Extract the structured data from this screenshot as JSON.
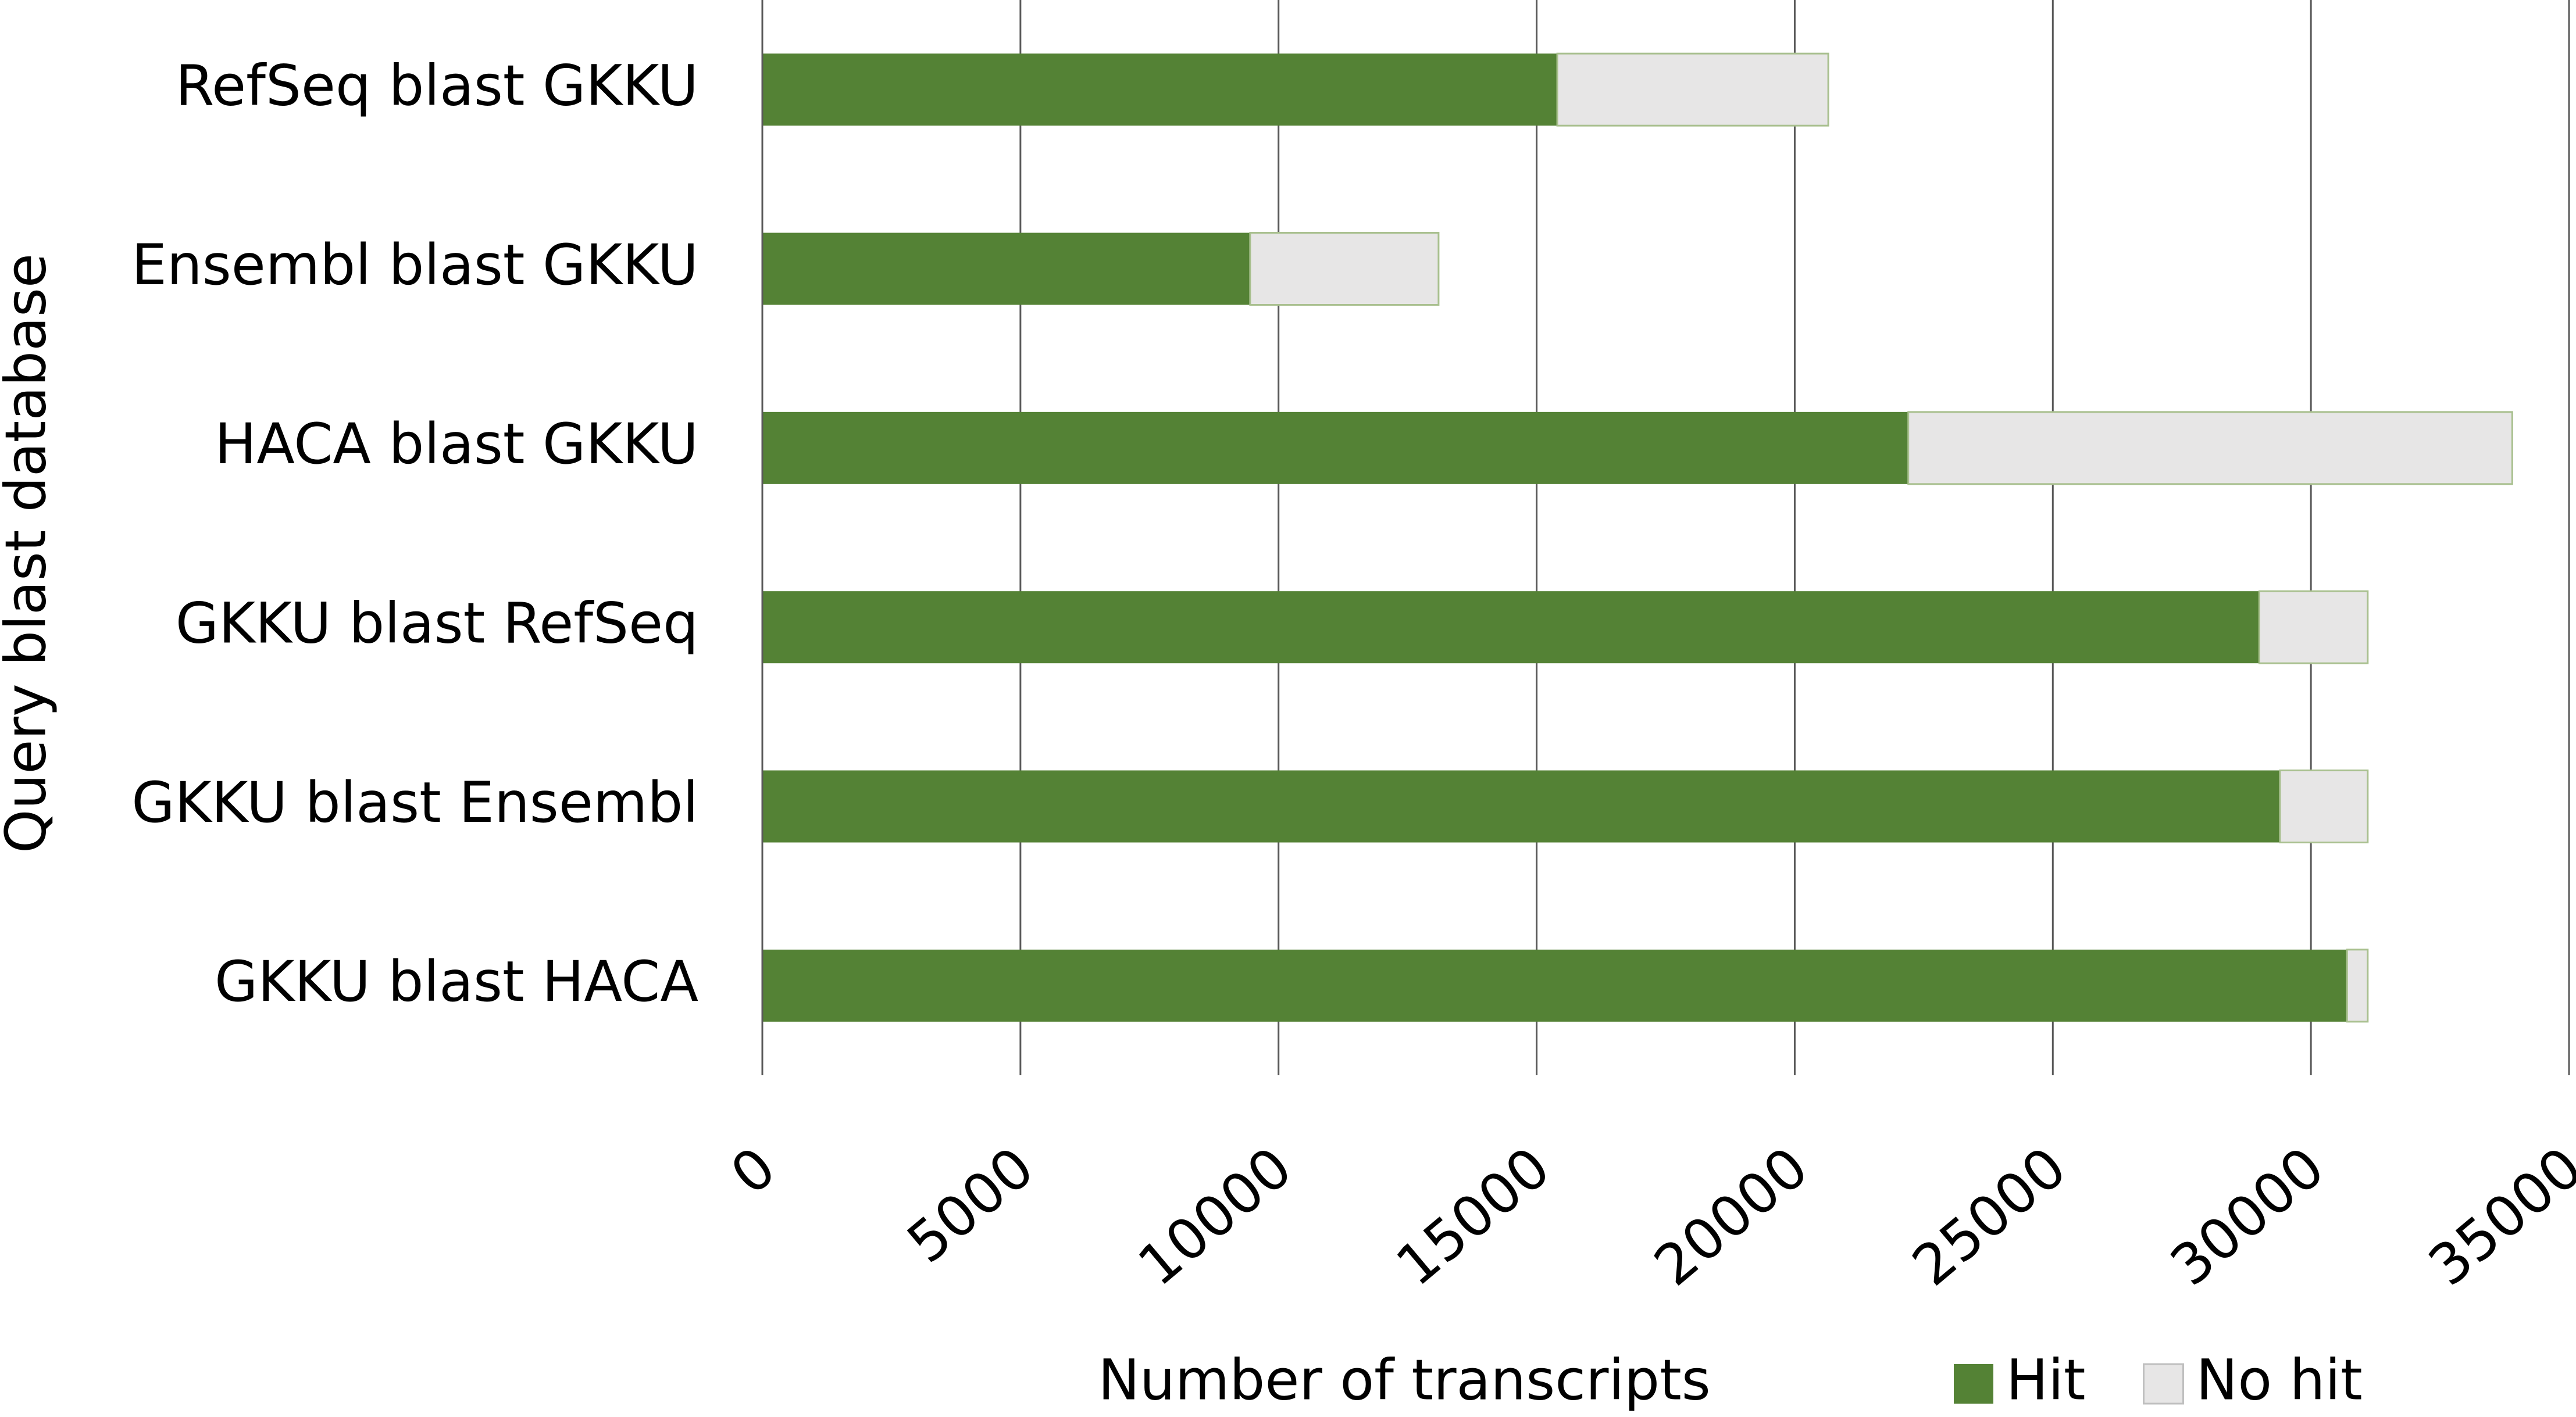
{
  "chart_data": {
    "type": "stacked-bar-horizontal",
    "categories": [
      "RefSeq blast GKKU",
      "Ensembl blast GKKU",
      "HACA blast GKKU",
      "GKKU blast RefSeq",
      "GKKU blast Ensembl",
      "GKKU blast HACA"
    ],
    "series": [
      {
        "name": "Hit",
        "color": "#548235",
        "values": [
          15400,
          9450,
          22200,
          29000,
          29400,
          30700
        ]
      },
      {
        "name": "No hit",
        "color": "#e7e6e6",
        "values": [
          5250,
          3650,
          11700,
          2100,
          1700,
          400
        ]
      }
    ],
    "x_label": "Number of transcripts",
    "y_label": "Query blast database",
    "xlim": [
      0,
      35000
    ],
    "xticks": [
      0,
      5000,
      10000,
      15000,
      20000,
      25000,
      30000,
      35000
    ],
    "grid": true,
    "legend": "bottom"
  }
}
